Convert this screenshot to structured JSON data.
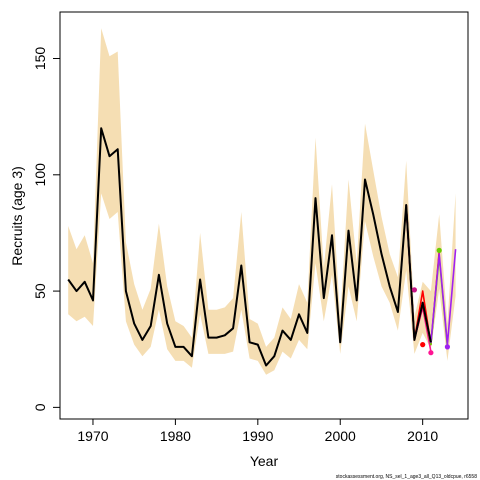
{
  "chart_data": {
    "type": "line",
    "title": "",
    "xlabel": "Year",
    "ylabel": "Recruits (age 3)",
    "xlim": [
      1966,
      2015.5
    ],
    "ylim": [
      -5,
      170
    ],
    "xticks": [
      1970,
      1980,
      1990,
      2000,
      2010
    ],
    "yticks": [
      0,
      50,
      100,
      150
    ],
    "footer": "stockassessment.org, NS_sel_1_age3_all_Q13_oldcpue, r6558",
    "colors": {
      "band": "#f5deb3",
      "main_line": "#000000",
      "retro": [
        "#ff1493",
        "#c71585",
        "#cd0000",
        "#ff0000",
        "#66cd00",
        "#a020f0"
      ]
    },
    "x": [
      1967,
      1968,
      1969,
      1970,
      1971,
      1972,
      1973,
      1974,
      1975,
      1976,
      1977,
      1978,
      1979,
      1980,
      1981,
      1982,
      1983,
      1984,
      1985,
      1986,
      1987,
      1988,
      1989,
      1990,
      1991,
      1992,
      1993,
      1994,
      1995,
      1996,
      1997,
      1998,
      1999,
      2000,
      2001,
      2002,
      2003,
      2004,
      2005,
      2006,
      2007,
      2008,
      2009,
      2010,
      2011,
      2012,
      2013,
      2014
    ],
    "band_lower": [
      40,
      37,
      39,
      35,
      92,
      81,
      84,
      37,
      27,
      22,
      26,
      42,
      25,
      20,
      20,
      17,
      40,
      23,
      23,
      23,
      24,
      42,
      21,
      20,
      14,
      16,
      24,
      21,
      29,
      25,
      62,
      37,
      57,
      23,
      52,
      37,
      80,
      65,
      52,
      45,
      33,
      59,
      23,
      32,
      25,
      51,
      20,
      48
    ],
    "band_upper": [
      78,
      68,
      74,
      62,
      163,
      151,
      153,
      71,
      53,
      42,
      51,
      79,
      52,
      37,
      35,
      30,
      75,
      42,
      42,
      43,
      47,
      84,
      38,
      36,
      26,
      30,
      43,
      38,
      53,
      45,
      116,
      60,
      96,
      38,
      98,
      62,
      122,
      102,
      82,
      66,
      56,
      106,
      39,
      54,
      50,
      83,
      36,
      92
    ],
    "series": [
      {
        "name": "",
        "x": [
          1967,
          1968,
          1969,
          1970,
          1971,
          1972,
          1973,
          1974,
          1975,
          1976,
          1977,
          1978,
          1979,
          1980,
          1981,
          1982,
          1983,
          1984,
          1985,
          1986,
          1987,
          1988,
          1989,
          1990,
          1991,
          1992,
          1993,
          1994,
          1995,
          1996,
          1997,
          1998,
          1999,
          2000,
          2001,
          2002,
          2003,
          2004,
          2005,
          2006,
          2007,
          2008,
          2009,
          2010,
          2011
        ],
        "values": [
          55,
          50,
          54,
          46,
          120,
          108,
          111,
          50,
          36,
          29,
          35,
          57,
          36,
          26,
          26,
          22,
          55,
          30,
          30,
          31,
          34,
          61,
          28,
          27,
          18,
          22,
          33,
          29,
          40,
          32,
          90,
          47,
          74,
          28,
          76,
          46,
          98,
          83,
          66,
          52,
          41,
          87,
          29,
          45,
          28
        ]
      },
      {
        "name": "",
        "x": [
          2008,
          2009,
          2010,
          2011
        ],
        "values": [
          86,
          29,
          43,
          24
        ]
      },
      {
        "name": "",
        "x": [
          2008,
          2009,
          2010,
          2011
        ],
        "values": [
          87,
          29,
          45,
          27
        ]
      },
      {
        "name": "",
        "x": [
          2008,
          2009,
          2010,
          2011
        ],
        "values": [
          87,
          29,
          44,
          27
        ]
      },
      {
        "name": "",
        "x": [
          2008,
          2009,
          2010,
          2011,
          2012
        ],
        "values": [
          87,
          29,
          50,
          27,
          67
        ]
      },
      {
        "name": "",
        "x": [
          2008,
          2009,
          2010,
          2011,
          2012,
          2013
        ],
        "values": [
          87,
          29,
          45,
          27,
          65,
          26
        ]
      },
      {
        "name": "",
        "x": [
          2008,
          2009,
          2010,
          2011,
          2012,
          2013,
          2014
        ],
        "values": [
          87,
          29,
          45,
          28,
          66,
          27,
          68
        ]
      }
    ],
    "endpoints": [
      {
        "x": 2011,
        "y": 23.5,
        "color": "#ff1493"
      },
      {
        "x": 2009,
        "y": 50.5,
        "color": "#c71585"
      },
      {
        "x": 2010,
        "y": 27,
        "color": "#ff0000"
      },
      {
        "x": 2012,
        "y": 67.5,
        "color": "#66cd00"
      },
      {
        "x": 2013,
        "y": 26,
        "color": "#a020f0"
      }
    ]
  }
}
